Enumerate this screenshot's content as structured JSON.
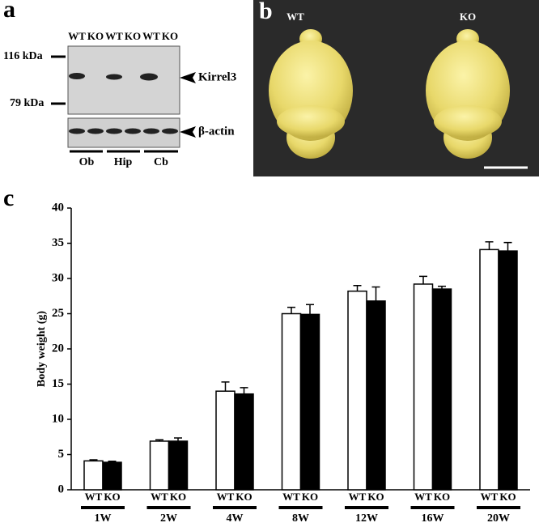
{
  "panel_a": {
    "label": "a",
    "lane_labels": [
      "WT",
      "KO",
      "WT",
      "KO",
      "WT",
      "KO"
    ],
    "markers": [
      "116 kDa",
      "79 kDa"
    ],
    "bands": [
      "Kirrel3",
      "β-actin"
    ],
    "regions": [
      "Ob",
      "Hip",
      "Cb"
    ]
  },
  "panel_b": {
    "label": "b",
    "genotypes": [
      "WT",
      "KO"
    ]
  },
  "chart_data": {
    "type": "bar",
    "panel_label": "c",
    "ylabel": "Body weight (g)",
    "categories": [
      "1W",
      "2W",
      "4W",
      "8W",
      "12W",
      "16W",
      "20W"
    ],
    "series": [
      {
        "name": "WT",
        "color": "#ffffff",
        "values": [
          4.1,
          6.9,
          14.0,
          25.0,
          28.2,
          29.2,
          34.1
        ],
        "errors": [
          0.15,
          0.2,
          1.3,
          0.9,
          0.8,
          1.1,
          1.1
        ]
      },
      {
        "name": "KO",
        "color": "#000000",
        "values": [
          3.9,
          6.9,
          13.6,
          24.9,
          26.8,
          28.5,
          33.9
        ],
        "errors": [
          0.15,
          0.45,
          0.9,
          1.4,
          2.0,
          0.4,
          1.2
        ]
      }
    ],
    "ylim": [
      0,
      40
    ],
    "yticks": [
      0,
      5,
      10,
      15,
      20,
      25,
      30,
      35,
      40
    ]
  }
}
